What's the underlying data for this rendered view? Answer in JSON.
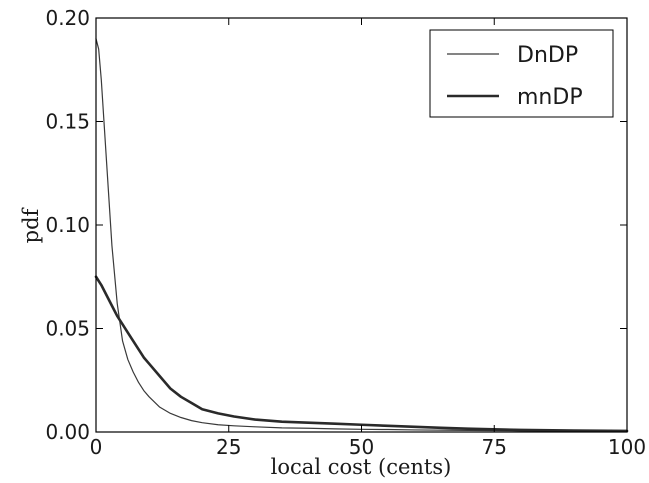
{
  "chart_data": {
    "type": "line",
    "title": "",
    "xlabel": "local cost (cents)",
    "ylabel": "pdf",
    "xlim": [
      0,
      100
    ],
    "ylim": [
      0,
      0.2
    ],
    "xticks": [
      0,
      25,
      50,
      75,
      100
    ],
    "xtick_labels": [
      "0",
      "25",
      "50",
      "75",
      "100"
    ],
    "yticks": [
      0,
      0.05,
      0.1,
      0.15,
      0.2
    ],
    "ytick_labels": [
      "0.00",
      "0.05",
      "0.10",
      "0.15",
      "0.20"
    ],
    "grid": false,
    "legend_position": "top-right",
    "series": [
      {
        "name": "DnDP",
        "color": "#3a3a3a",
        "line_style": "thin",
        "x": [
          0,
          0.5,
          1,
          1.5,
          2,
          3,
          4,
          5,
          6,
          7,
          8,
          9,
          10,
          12,
          14,
          16,
          18,
          20,
          23,
          26,
          30,
          35,
          40,
          45,
          50,
          55,
          60,
          70,
          80,
          90,
          100
        ],
        "y": [
          0.19,
          0.185,
          0.17,
          0.15,
          0.13,
          0.09,
          0.062,
          0.044,
          0.035,
          0.029,
          0.024,
          0.02,
          0.017,
          0.012,
          0.009,
          0.007,
          0.0055,
          0.0045,
          0.0035,
          0.003,
          0.0025,
          0.002,
          0.0018,
          0.0015,
          0.0013,
          0.0012,
          0.001,
          0.0008,
          0.0006,
          0.0005,
          0.0004
        ]
      },
      {
        "name": "mnDP",
        "color": "#2a2a2a",
        "line_style": "thick",
        "x": [
          0,
          1,
          2,
          3,
          4,
          5,
          6,
          7,
          8,
          9,
          10,
          12,
          14,
          16,
          18,
          20,
          23,
          26,
          30,
          35,
          40,
          45,
          50,
          55,
          60,
          65,
          70,
          80,
          90,
          100
        ],
        "y": [
          0.075,
          0.071,
          0.066,
          0.061,
          0.056,
          0.052,
          0.048,
          0.044,
          0.04,
          0.036,
          0.033,
          0.027,
          0.021,
          0.017,
          0.014,
          0.011,
          0.009,
          0.0075,
          0.006,
          0.005,
          0.0045,
          0.004,
          0.0035,
          0.003,
          0.0025,
          0.002,
          0.0016,
          0.001,
          0.0007,
          0.0005
        ]
      }
    ]
  }
}
